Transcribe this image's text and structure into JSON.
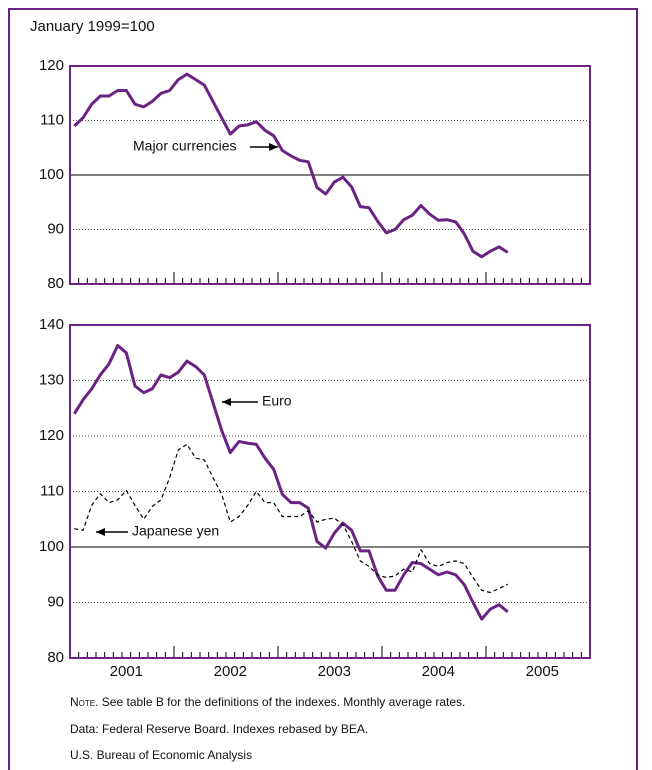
{
  "chart_data": [
    {
      "type": "line",
      "ylabel": "January 1999=100",
      "categories": [
        null,
        null,
        null,
        null,
        null,
        null,
        null,
        null,
        null,
        null,
        null,
        null,
        null,
        null,
        null,
        null,
        null,
        null,
        null,
        null,
        null,
        null,
        null,
        null,
        null,
        null,
        null,
        null,
        null,
        null,
        null,
        null,
        null,
        null,
        null,
        null,
        null,
        null,
        null,
        null,
        null,
        null,
        null,
        null,
        null,
        null,
        null,
        null,
        null,
        null,
        null,
        null,
        null,
        null,
        null,
        null,
        null,
        null,
        null,
        null
      ],
      "ylim": [
        80,
        120
      ],
      "yticks": [
        80,
        90,
        100,
        110,
        120
      ],
      "grid": true,
      "reference_line": 100,
      "annotations": [
        "Major currencies"
      ],
      "series": [
        {
          "name": "Major currencies",
          "color": "#6a2383",
          "dash": false,
          "values": [
            109,
            110.5,
            113,
            114.5,
            114.5,
            115.5,
            115.5,
            113,
            112.5,
            113.5,
            115,
            115.5,
            117.5,
            118.5,
            117.5,
            116.5,
            113.5,
            110.5,
            107.5,
            109,
            109.2,
            109.8,
            108.2,
            107.2,
            104.5,
            103.5,
            102.7,
            102.4,
            97.7,
            96.5,
            98.7,
            99.6,
            97.8,
            94.2,
            94,
            91.5,
            89.4,
            90,
            91.8,
            92.6,
            94.4,
            92.8,
            91.7,
            91.8,
            91.4,
            89.2,
            86,
            85,
            86,
            86.8,
            85.8,
            null,
            null,
            null,
            null,
            null,
            null,
            null,
            null,
            null
          ]
        }
      ]
    },
    {
      "type": "line",
      "categories": [
        null,
        null,
        null,
        null,
        null,
        null,
        "2001",
        null,
        null,
        null,
        null,
        null,
        null,
        null,
        null,
        null,
        null,
        null,
        "2002",
        null,
        null,
        null,
        null,
        null,
        null,
        null,
        null,
        null,
        null,
        null,
        "2003",
        null,
        null,
        null,
        null,
        null,
        null,
        null,
        null,
        null,
        null,
        null,
        "2004",
        null,
        null,
        null,
        null,
        null,
        null,
        null,
        null,
        null,
        null,
        null,
        "2005",
        null,
        null,
        null,
        null,
        null
      ],
      "ylim": [
        80,
        140
      ],
      "yticks": [
        80,
        90,
        100,
        110,
        120,
        130,
        140
      ],
      "grid": true,
      "reference_line": 100,
      "annotations": [
        "Euro",
        "Japanese yen"
      ],
      "series": [
        {
          "name": "Euro",
          "color": "#6a2383",
          "dash": false,
          "values": [
            124,
            126.5,
            128.5,
            131,
            133,
            136.3,
            135,
            129,
            127.8,
            128.5,
            131,
            130.5,
            131.5,
            133.5,
            132.5,
            131,
            126,
            121,
            117,
            119,
            118.7,
            118.5,
            116,
            114,
            109.5,
            108,
            108,
            107,
            101,
            99.8,
            102.5,
            104.3,
            103,
            99.3,
            99.3,
            94.8,
            92.2,
            92.2,
            95,
            97.2,
            97,
            96,
            95,
            95.5,
            95,
            93.2,
            90,
            87,
            88.8,
            89.6,
            88.3,
            null,
            null,
            null,
            null,
            null,
            null,
            null,
            null,
            null
          ]
        },
        {
          "name": "Japanese yen",
          "color": "#000000",
          "dash": true,
          "values": [
            103.3,
            103,
            107.5,
            109.6,
            108,
            108.5,
            110.2,
            107.5,
            105,
            107.3,
            108.5,
            112.5,
            117.5,
            118.5,
            116,
            115.7,
            112.5,
            109.5,
            104.5,
            105.5,
            107.5,
            110,
            108,
            108,
            105.5,
            105.5,
            105.5,
            106.5,
            104.5,
            105,
            105.2,
            104,
            101,
            97.5,
            96.5,
            95,
            94.5,
            94.8,
            96,
            95.5,
            99.5,
            97,
            96.5,
            97.2,
            97.5,
            97,
            94.5,
            92.2,
            91.8,
            92.5,
            93.3,
            null,
            null,
            null,
            null,
            null,
            null,
            null,
            null,
            null
          ]
        }
      ]
    }
  ],
  "footer": {
    "note_label": "Note.",
    "note": "See table B for the definitions of the indexes. Monthly average rates.",
    "source": "Data: Federal Reserve Board. Indexes rebased by BEA.",
    "credit": "U.S. Bureau of Economic Analysis"
  }
}
